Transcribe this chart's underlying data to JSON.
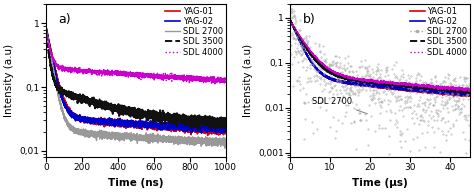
{
  "panel_a": {
    "title": "a)",
    "xlabel": "Time (ns)",
    "ylabel": "Intensity (a.u)",
    "xlim": [
      0,
      1000
    ],
    "ylim_log": [
      0.008,
      2.0
    ],
    "yticks": [
      0.01,
      0.1,
      1
    ],
    "series": [
      {
        "label": "YAG-01",
        "color": "#dd0000",
        "lw": 1.2,
        "ls": "solid",
        "A1": 0.85,
        "tau1": 30,
        "A2": 0.02,
        "tau2": 800,
        "floor": 0.015,
        "noise": 0.008
      },
      {
        "label": "YAG-02",
        "color": "#0000cc",
        "lw": 1.2,
        "ls": "solid",
        "A1": 0.85,
        "tau1": 28,
        "A2": 0.02,
        "tau2": 900,
        "floor": 0.015,
        "noise": 0.008
      },
      {
        "label": "SDL 2700",
        "color": "#999999",
        "lw": 1.0,
        "ls": "solid",
        "A1": 0.85,
        "tau1": 25,
        "A2": 0.01,
        "tau2": 600,
        "floor": 0.012,
        "noise": 0.007
      },
      {
        "label": "SDL 3500",
        "color": "#111111",
        "lw": 1.4,
        "ls": "dashed",
        "A1": 0.7,
        "tau1": 15,
        "A2": 0.08,
        "tau2": 300,
        "floor": 0.025,
        "noise": 0.015
      },
      {
        "label": "SDL 4000",
        "color": "#cc00cc",
        "lw": 1.0,
        "ls": "dotted",
        "A1": 0.6,
        "tau1": 20,
        "A2": 0.15,
        "tau2": 1500,
        "floor": 0.05,
        "noise": 0.018
      }
    ]
  },
  "panel_b": {
    "title": "b)",
    "xlabel": "Time (μs)",
    "ylabel": "Intensity (a.u)",
    "xlim": [
      0,
      45
    ],
    "ylim_log": [
      0.0008,
      2.0
    ],
    "yticks": [
      0.001,
      0.01,
      0.1,
      1
    ],
    "annotation": "SDL 2700",
    "series": [
      {
        "label": "YAG-01",
        "color": "#dd0000",
        "lw": 1.2,
        "ls": "solid",
        "A1": 0.85,
        "tau1": 2.0,
        "A2": 0.04,
        "tau2": 30,
        "floor": 0.01,
        "noise": 0.004,
        "scatter": false
      },
      {
        "label": "YAG-02",
        "color": "#0000cc",
        "lw": 1.2,
        "ls": "solid",
        "A1": 0.85,
        "tau1": 2.0,
        "A2": 0.04,
        "tau2": 32,
        "floor": 0.01,
        "noise": 0.004,
        "scatter": false
      },
      {
        "label": "SDL 2700",
        "color": "#aaaaaa",
        "lw": 0.5,
        "ls": "dotted",
        "A1": 0.9,
        "tau1": 1.2,
        "A2": 0.05,
        "tau2": 8,
        "floor": 0.0,
        "noise": 0.003,
        "scatter": true
      },
      {
        "label": "SDL 3500",
        "color": "#111111",
        "lw": 1.4,
        "ls": "dashed",
        "A1": 0.8,
        "tau1": 2.5,
        "A2": 0.05,
        "tau2": 35,
        "floor": 0.009,
        "noise": 0.005,
        "scatter": false
      },
      {
        "label": "SDL 4000",
        "color": "#cc00cc",
        "lw": 1.0,
        "ls": "dotted",
        "A1": 0.8,
        "tau1": 2.8,
        "A2": 0.05,
        "tau2": 40,
        "floor": 0.009,
        "noise": 0.006,
        "scatter": false
      }
    ]
  },
  "background_color": "#ffffff",
  "legend_fontsize": 6.0,
  "label_fontsize": 7.5,
  "tick_fontsize": 6.5
}
